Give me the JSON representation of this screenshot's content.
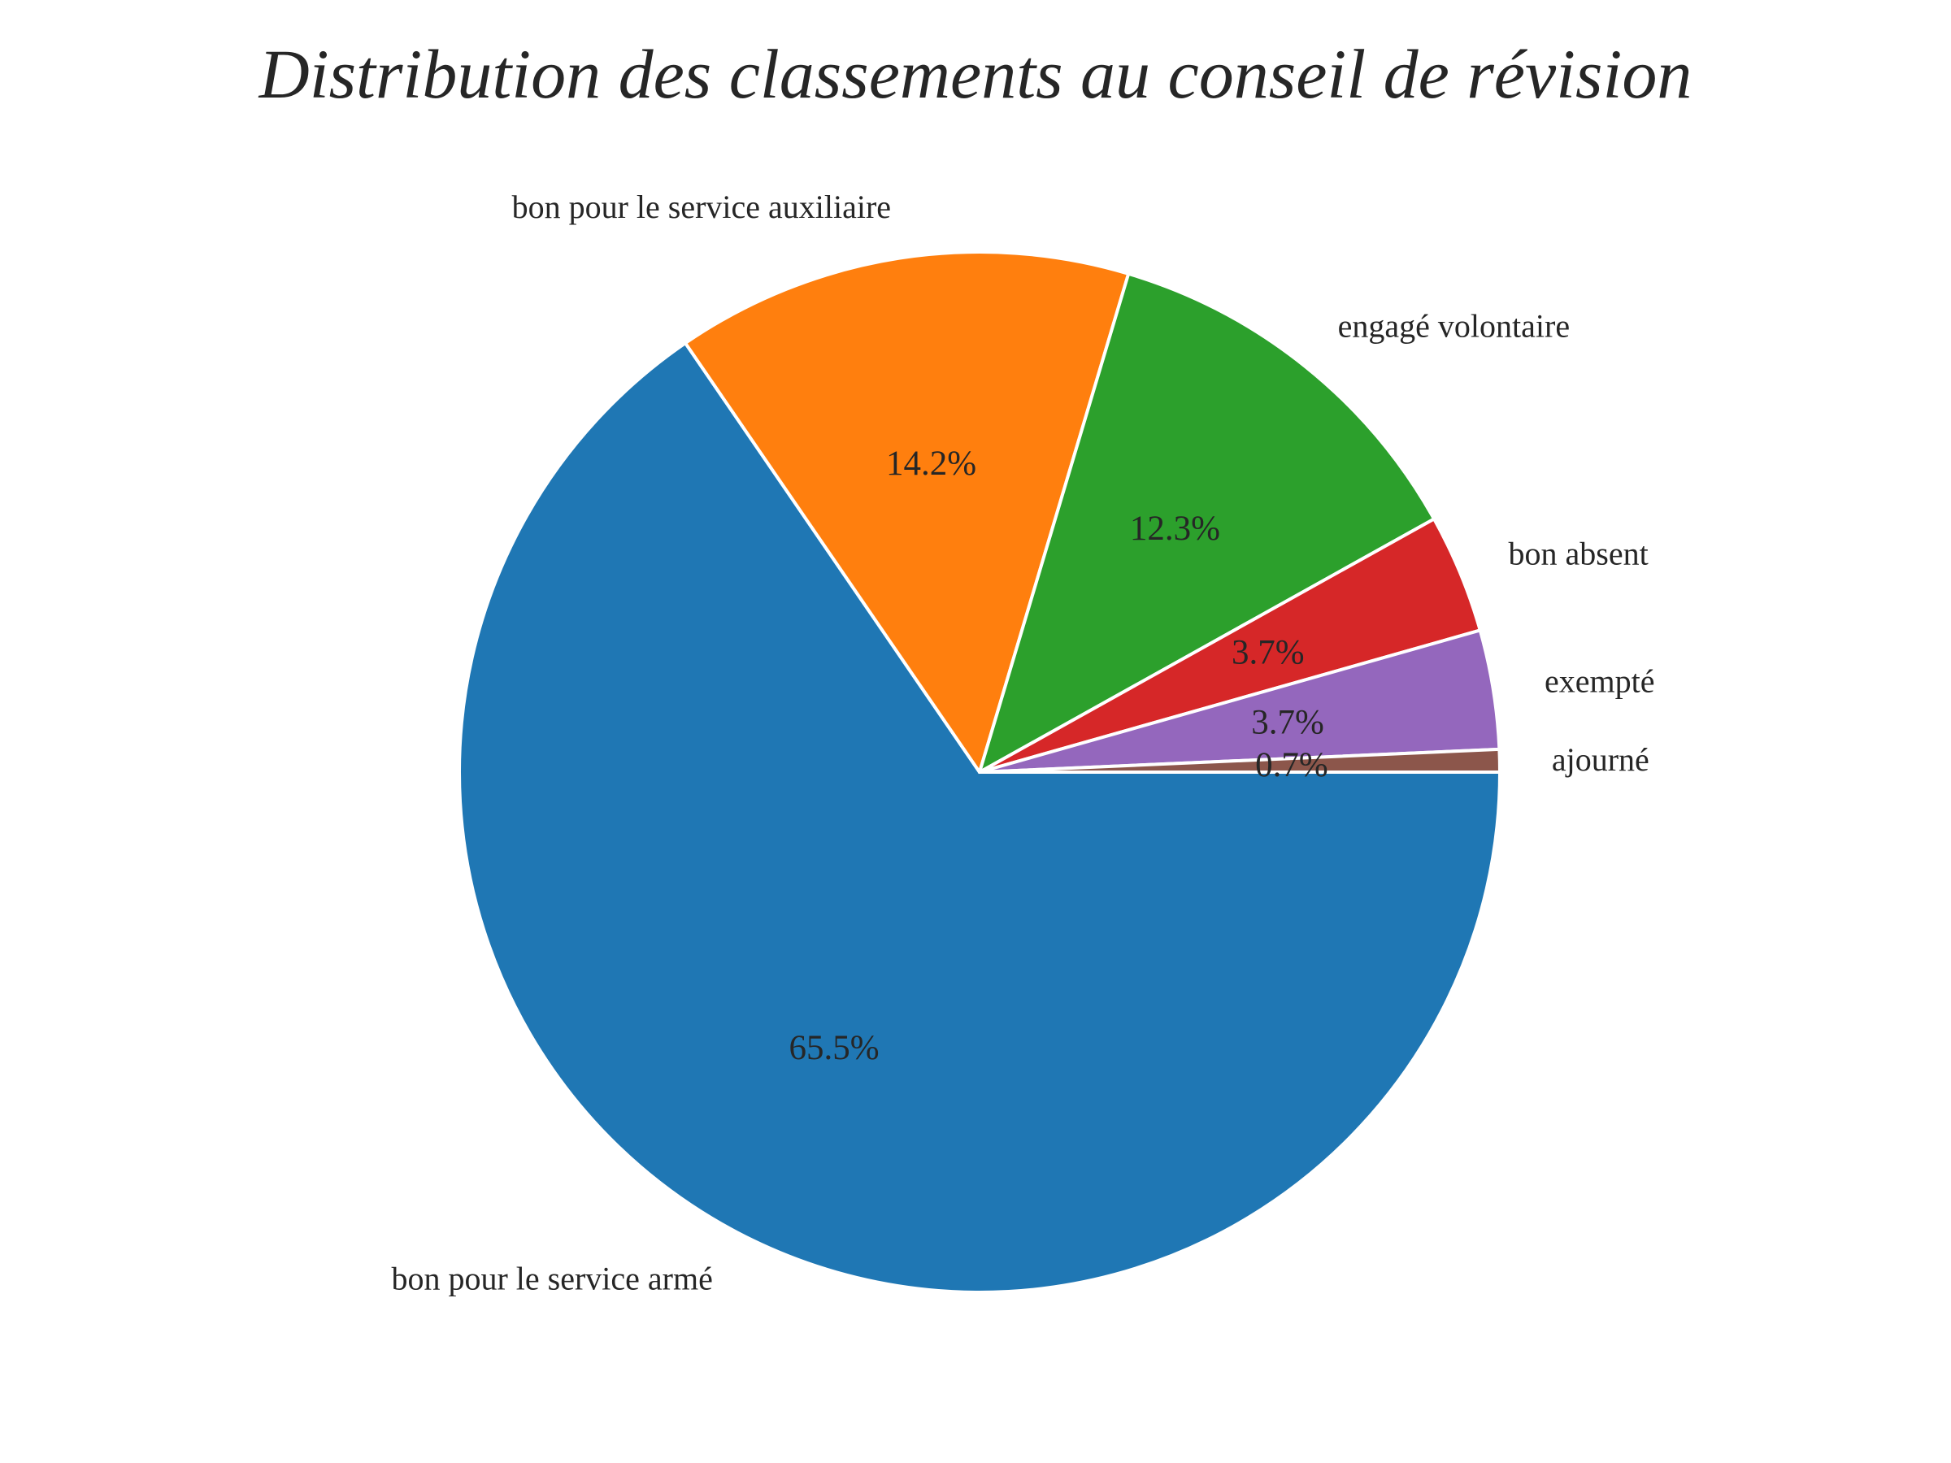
{
  "chart_data": {
    "type": "pie",
    "title": "Distribution des classements au conseil de révision",
    "start_angle_deg": 0,
    "direction": "clockwise",
    "slices": [
      {
        "label": "bon pour le service armé",
        "value": 65.5,
        "pct_label": "65.5%",
        "color": "#1f77b4"
      },
      {
        "label": "bon pour le service auxiliaire",
        "value": 14.2,
        "pct_label": "14.2%",
        "color": "#ff7f0e"
      },
      {
        "label": "engagé volontaire",
        "value": 12.3,
        "pct_label": "12.3%",
        "color": "#2ca02c"
      },
      {
        "label": "bon absent",
        "value": 3.7,
        "pct_label": "3.7%",
        "color": "#d62728"
      },
      {
        "label": "exempté",
        "value": 3.7,
        "pct_label": "3.7%",
        "color": "#9467bd"
      },
      {
        "label": "ajourné",
        "value": 0.7,
        "pct_label": "0.7%",
        "color": "#8c564b"
      }
    ]
  }
}
